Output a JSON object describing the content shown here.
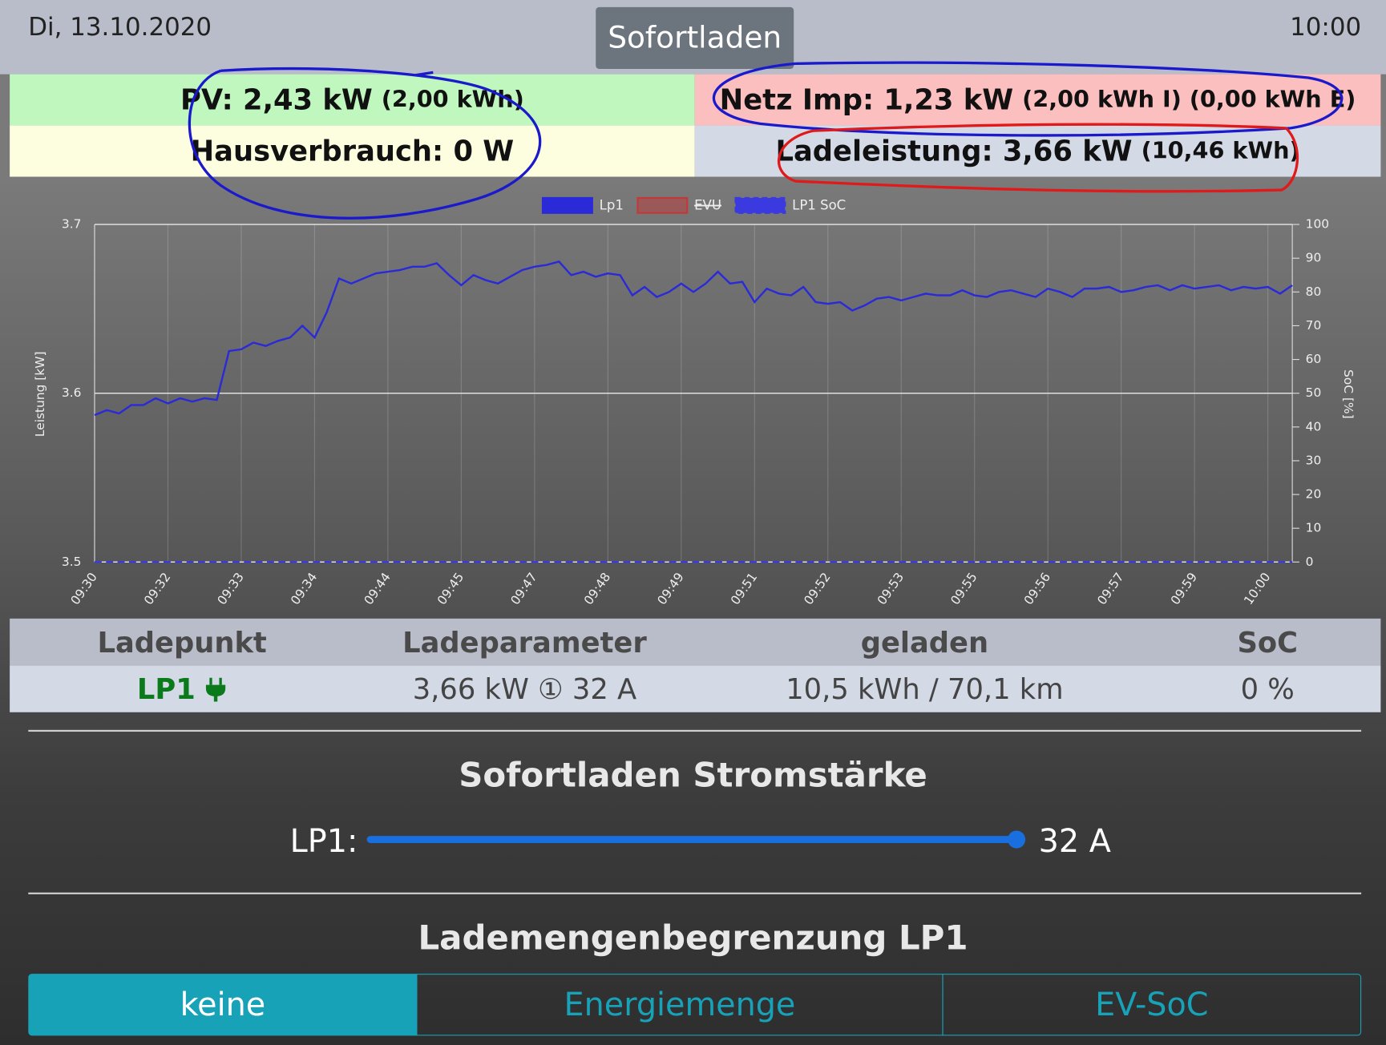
{
  "header": {
    "date": "Di, 13.10.2020",
    "mode": "Sofortladen",
    "time": "10:00"
  },
  "summary": {
    "pv": {
      "main": "PV: 2,43 kW",
      "detail": "(2,00 kWh)"
    },
    "grid": {
      "main": "Netz Imp: 1,23 kW",
      "detail": "(2,00 kWh I) (0,00 kWh E)"
    },
    "house": {
      "main": "Hausverbrauch: 0 W"
    },
    "charging": {
      "main": "Ladeleistung: 3,66 kW",
      "detail": "(10,46 kWh)"
    }
  },
  "chart_data": {
    "type": "line",
    "ylabel": "Leistung [kW]",
    "y2label": "SoC [%]",
    "categories": [
      "09:30",
      null,
      null,
      null,
      null,
      null,
      "09:32",
      null,
      null,
      null,
      null,
      null,
      "09:33",
      null,
      null,
      null,
      null,
      null,
      "09:34",
      null,
      null,
      null,
      null,
      null,
      "09:44",
      null,
      null,
      null,
      null,
      null,
      "09:45",
      null,
      null,
      null,
      null,
      null,
      "09:47",
      null,
      null,
      null,
      null,
      null,
      "09:48",
      null,
      null,
      null,
      null,
      null,
      "09:49",
      null,
      null,
      null,
      null,
      null,
      "09:51",
      null,
      null,
      null,
      null,
      null,
      "09:52",
      null,
      null,
      null,
      null,
      null,
      "09:53",
      null,
      null,
      null,
      null,
      null,
      "09:55",
      null,
      null,
      null,
      null,
      null,
      "09:56",
      null,
      null,
      null,
      null,
      null,
      "09:57",
      null,
      null,
      null,
      null,
      null,
      "09:59",
      null,
      null,
      null,
      null,
      null,
      "10:00",
      null,
      null
    ],
    "series": [
      {
        "name": "Lp1",
        "color": "#2a2ad8",
        "values": [
          3.587,
          3.59,
          3.588,
          3.593,
          3.593,
          3.597,
          3.594,
          3.597,
          3.595,
          3.597,
          3.596,
          3.625,
          3.626,
          3.63,
          3.628,
          3.631,
          3.633,
          3.64,
          3.633,
          3.648,
          3.668,
          3.665,
          3.668,
          3.671,
          3.672,
          3.673,
          3.675,
          3.675,
          3.677,
          3.67,
          3.664,
          3.67,
          3.667,
          3.665,
          3.669,
          3.673,
          3.675,
          3.676,
          3.678,
          3.67,
          3.672,
          3.669,
          3.671,
          3.67,
          3.658,
          3.663,
          3.657,
          3.66,
          3.665,
          3.66,
          3.665,
          3.672,
          3.665,
          3.666,
          3.654,
          3.662,
          3.659,
          3.658,
          3.663,
          3.654,
          3.653,
          3.654,
          3.649,
          3.652,
          3.656,
          3.657,
          3.655,
          3.657,
          3.659,
          3.658,
          3.658,
          3.661,
          3.658,
          3.657,
          3.66,
          3.661,
          3.659,
          3.657,
          3.662,
          3.66,
          3.657,
          3.662,
          3.662,
          3.663,
          3.66,
          3.661,
          3.663,
          3.664,
          3.661,
          3.664,
          3.662,
          3.663,
          3.664,
          3.661,
          3.663,
          3.662,
          3.663,
          3.659,
          3.664
        ]
      },
      {
        "name": "EVU",
        "color": "#c03a3a",
        "hidden": true,
        "values": [
          null,
          null,
          null,
          null,
          null,
          null,
          null,
          null,
          null,
          null,
          null,
          null,
          null,
          null,
          null,
          null,
          null,
          null,
          null,
          null,
          null,
          null,
          null,
          null,
          null,
          null,
          null,
          null,
          null,
          null,
          null,
          null,
          null,
          null,
          null,
          null,
          null,
          null,
          null,
          null,
          null,
          null,
          null,
          null,
          null,
          null,
          null,
          null,
          null,
          null,
          null,
          null,
          null,
          null,
          null,
          null,
          null,
          null,
          null,
          null,
          null,
          null,
          null,
          null,
          null,
          null,
          null,
          null,
          null,
          null,
          null,
          null,
          null,
          null,
          null,
          null,
          null,
          null,
          null,
          null,
          null,
          null,
          null,
          null,
          null,
          null,
          null,
          null,
          null,
          null,
          null,
          null,
          null,
          null,
          null,
          null,
          null,
          null,
          null
        ]
      },
      {
        "name": "LP1 SoC",
        "color": "#3a3ae0",
        "axis": "y2",
        "dashed": true,
        "values": [
          0,
          0,
          0,
          0,
          0,
          0,
          0,
          0,
          0,
          0,
          0,
          0,
          0,
          0,
          0,
          0,
          0,
          0,
          0,
          0,
          0,
          0,
          0,
          0,
          0,
          0,
          0,
          0,
          0,
          0,
          0,
          0,
          0,
          0,
          0,
          0,
          0,
          0,
          0,
          0,
          0,
          0,
          0,
          0,
          0,
          0,
          0,
          0,
          0,
          0,
          0,
          0,
          0,
          0,
          0,
          0,
          0,
          0,
          0,
          0,
          0,
          0,
          0,
          0,
          0,
          0,
          0,
          0,
          0,
          0,
          0,
          0,
          0,
          0,
          0,
          0,
          0,
          0,
          0,
          0,
          0,
          0,
          0,
          0,
          0,
          0,
          0,
          0,
          0,
          0,
          0,
          0,
          0,
          0,
          0,
          0,
          0,
          0,
          0
        ]
      }
    ],
    "ylim": [
      3.5,
      3.7
    ],
    "yticks": [
      3.5,
      3.6,
      3.7
    ],
    "y2lim": [
      0,
      100
    ],
    "y2ticks": [
      0,
      10,
      20,
      30,
      40,
      50,
      60,
      70,
      80,
      90,
      100
    ],
    "grid": true
  },
  "table": {
    "header": [
      "Ladepunkt",
      "Ladeparameter",
      "geladen",
      "SoC"
    ],
    "rows": [
      [
        "LP1",
        "3,66 kW ① 32 A",
        "10,5 kWh / 70,1 km",
        "0 %"
      ]
    ]
  },
  "current": {
    "title": "Sofortladen Stromstärke",
    "label": "LP1:",
    "value_label": "32 A"
  },
  "limit": {
    "title": "Lademengenbegrenzung LP1",
    "options": [
      "keine",
      "Energiemenge",
      "EV-SoC"
    ]
  }
}
